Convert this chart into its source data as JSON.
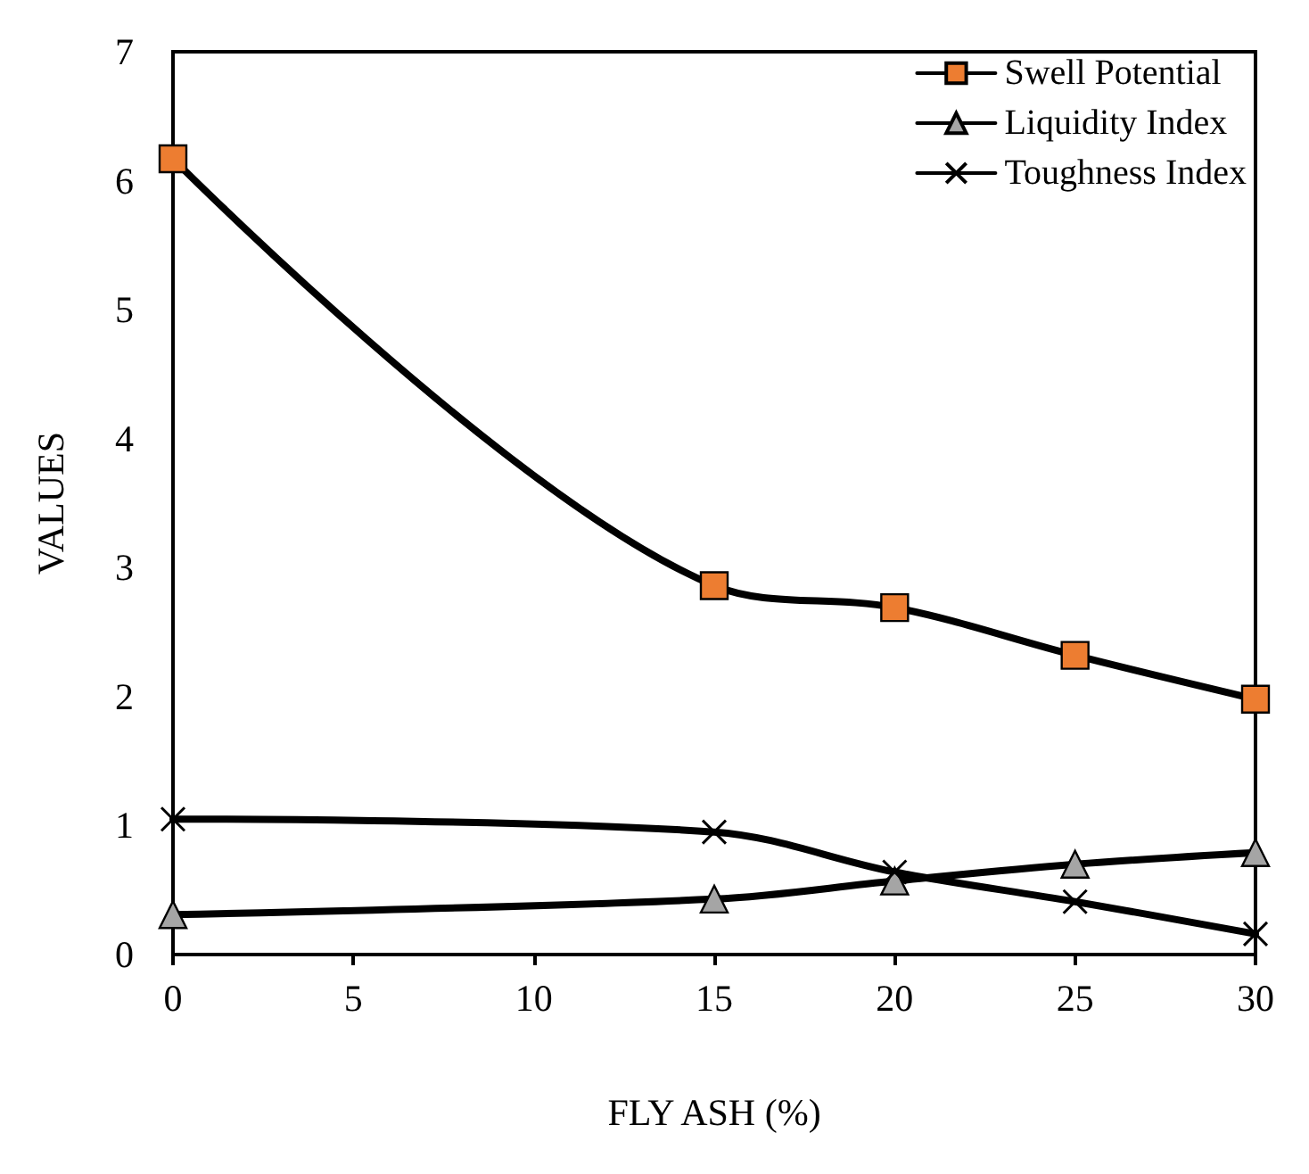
{
  "chart_data": {
    "type": "line",
    "xlabel": "FLY ASH (%)",
    "ylabel": "VALUES",
    "x": [
      0,
      15,
      20,
      25,
      30
    ],
    "series": [
      {
        "name": "Swell Potential",
        "color": "#ed7d31",
        "marker": "square",
        "values": [
          6.17,
          2.86,
          2.69,
          2.32,
          1.98
        ]
      },
      {
        "name": "Liquidity Index",
        "color": "#a5a5a5",
        "marker": "triangle",
        "values": [
          0.31,
          0.43,
          0.57,
          0.7,
          0.79
        ]
      },
      {
        "name": "Toughness Index",
        "color": "#000000",
        "marker": "cross",
        "values": [
          1.05,
          0.95,
          0.64,
          0.41,
          0.16
        ]
      }
    ],
    "xlim": [
      0,
      30
    ],
    "xticks": [
      0,
      5,
      10,
      15,
      20,
      25,
      30
    ],
    "ylim": [
      0,
      7
    ],
    "yticks": [
      0,
      1,
      2,
      3,
      4,
      5,
      6,
      7
    ],
    "grid": false,
    "legend": "top right",
    "line_style": "solid"
  }
}
